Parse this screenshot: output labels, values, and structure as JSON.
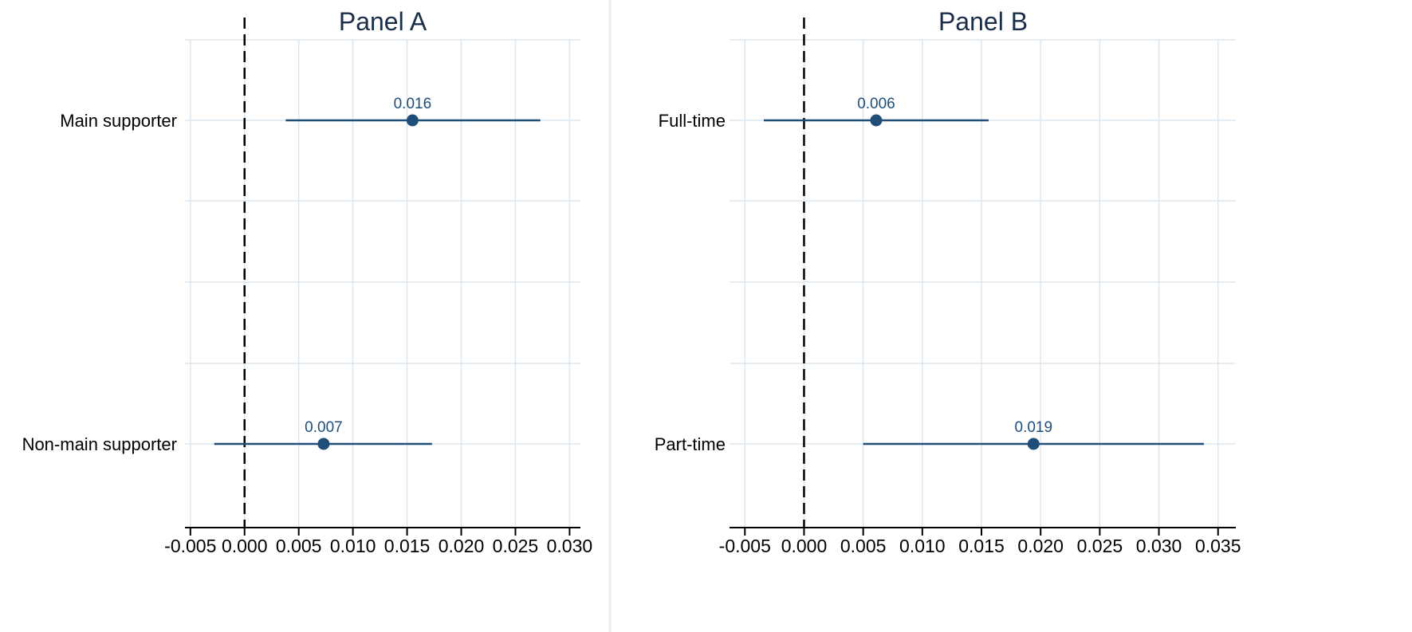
{
  "colors": {
    "accent": "#1f4e79",
    "grid": "#dde7ee",
    "axis": "#000000",
    "reference_line": "#000000",
    "panel_divider": "#e6edf2"
  },
  "chart_data": [
    {
      "type": "scatter",
      "subtype": "coefficient-plot",
      "title": "Panel A",
      "xlim": [
        -0.0055,
        0.031
      ],
      "xticks": [
        -0.005,
        0.0,
        0.005,
        0.01,
        0.015,
        0.02,
        0.025,
        0.03
      ],
      "xtick_labels": [
        "-0.005",
        "0.000",
        "0.005",
        "0.010",
        "0.015",
        "0.020",
        "0.025",
        "0.030"
      ],
      "reference_line_x": 0,
      "grid": true,
      "categories": [
        "Main supporter",
        "Non-main supporter"
      ],
      "estimates": [
        0.0155,
        0.0073
      ],
      "ci_low": [
        0.0038,
        -0.0028
      ],
      "ci_high": [
        0.0273,
        0.0173
      ],
      "value_labels": [
        "0.016",
        "0.007"
      ]
    },
    {
      "type": "scatter",
      "subtype": "coefficient-plot",
      "title": "Panel B",
      "xlim": [
        -0.0063,
        0.0365
      ],
      "xticks": [
        -0.005,
        0.0,
        0.005,
        0.01,
        0.015,
        0.02,
        0.025,
        0.03,
        0.035
      ],
      "xtick_labels": [
        "-0.005",
        "0.000",
        "0.005",
        "0.010",
        "0.015",
        "0.020",
        "0.025",
        "0.030",
        "0.035"
      ],
      "reference_line_x": 0,
      "grid": true,
      "categories": [
        "Full-time",
        "Part-time"
      ],
      "estimates": [
        0.0061,
        0.0194
      ],
      "ci_low": [
        -0.0034,
        0.005
      ],
      "ci_high": [
        0.0156,
        0.0338
      ],
      "value_labels": [
        "0.006",
        "0.019"
      ]
    }
  ]
}
